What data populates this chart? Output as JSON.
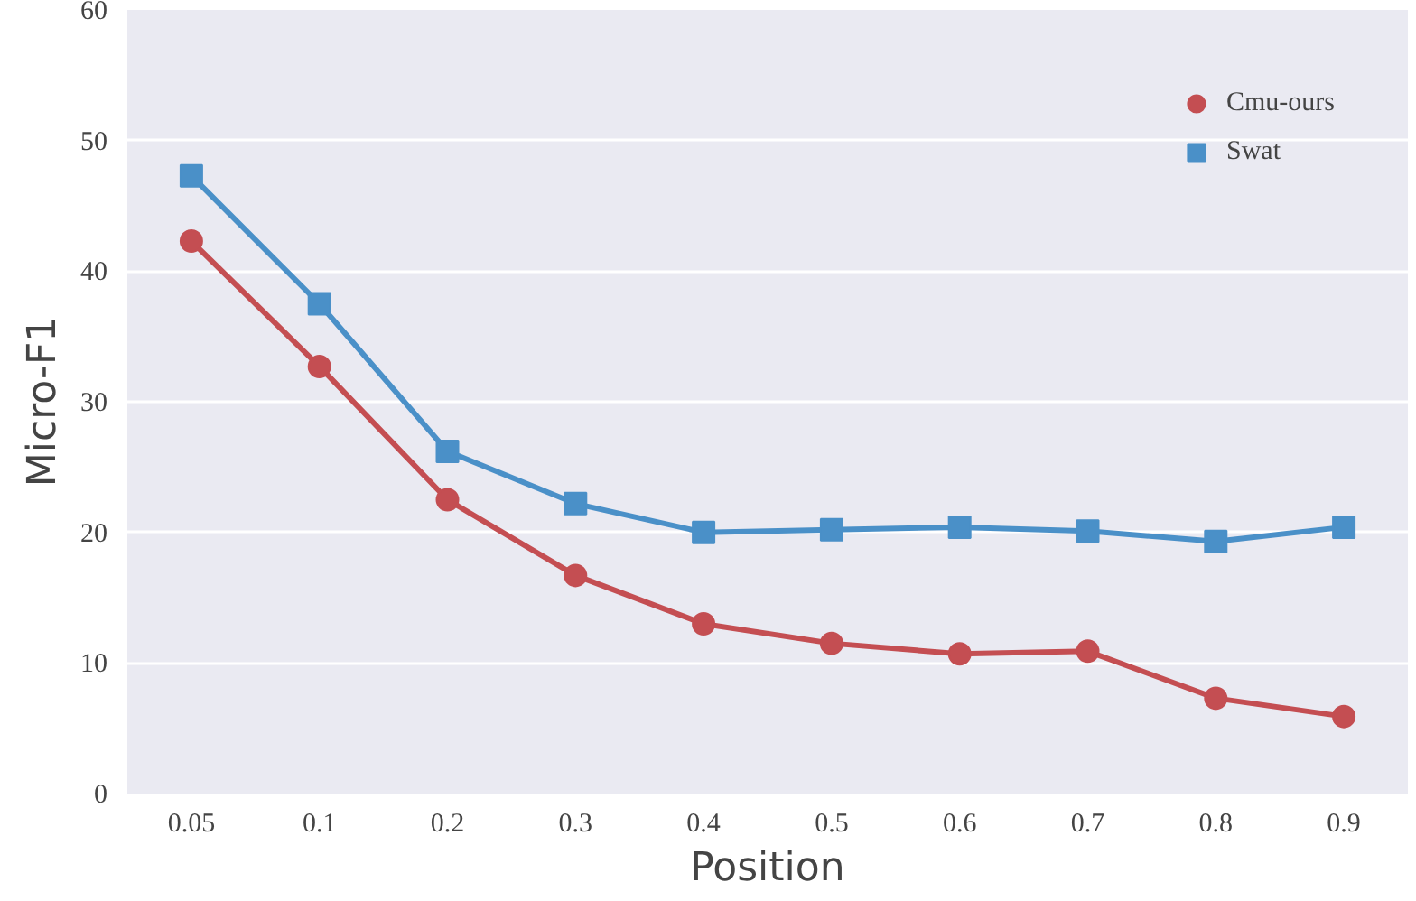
{
  "chart_data": {
    "type": "line",
    "xlabel": "Position",
    "ylabel": "Micro-F1",
    "categories": [
      "0.05",
      "0.1",
      "0.2",
      "0.3",
      "0.4",
      "0.5",
      "0.6",
      "0.7",
      "0.8",
      "0.9"
    ],
    "series": [
      {
        "name": "Cmu-ours",
        "color": "#c44e52",
        "marker": "circle",
        "values": [
          42.3,
          32.7,
          22.5,
          16.7,
          13.0,
          11.5,
          10.7,
          10.9,
          7.3,
          5.9
        ]
      },
      {
        "name": "Swat",
        "color": "#4a90c8",
        "marker": "square",
        "values": [
          47.3,
          37.5,
          26.2,
          22.2,
          20.0,
          20.2,
          20.4,
          20.1,
          19.3,
          20.4
        ]
      }
    ],
    "ylim": [
      0,
      60
    ],
    "yticks": [
      0,
      10,
      20,
      30,
      40,
      50,
      60
    ],
    "grid": "y",
    "legend": "top right",
    "line_style": "solid"
  }
}
